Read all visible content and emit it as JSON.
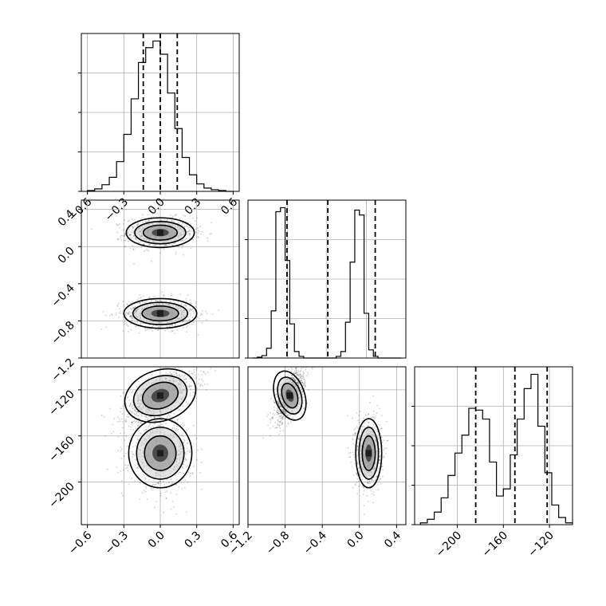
{
  "chart_data": [
    {
      "type": "histogram",
      "panel": "hist-param1",
      "xlim": [
        -0.65,
        0.65
      ],
      "xticks": [
        "−0.6",
        "−0.3",
        "0.0",
        "0.3",
        "0.6"
      ],
      "bins": [
        -0.6,
        -0.54,
        -0.48,
        -0.42,
        -0.36,
        -0.3,
        -0.24,
        -0.18,
        -0.12,
        -0.06,
        0.0,
        0.06,
        0.12,
        0.18,
        0.24,
        0.3,
        0.36,
        0.42,
        0.48,
        0.54,
        0.6
      ],
      "counts": [
        1,
        3,
        8,
        17,
        36,
        69,
        112,
        156,
        174,
        182,
        166,
        119,
        76,
        41,
        20,
        9,
        4,
        2,
        1,
        0
      ],
      "quantiles": [
        -0.14,
        0.0,
        0.14
      ],
      "grid": true
    },
    {
      "type": "scatter-density",
      "panel": "2d-param1-param2",
      "xlim": [
        -0.65,
        0.65
      ],
      "ylim": [
        -1.2,
        0.5
      ],
      "yticks": [
        "−1.2",
        "−0.8",
        "−0.4",
        "0.0",
        "0.4"
      ],
      "modes": [
        {
          "x": 0.0,
          "y": 0.15,
          "sx": 0.14,
          "sy": 0.08,
          "weight": 0.5
        },
        {
          "x": 0.0,
          "y": -0.72,
          "sx": 0.15,
          "sy": 0.08,
          "weight": 0.5
        }
      ],
      "grid": true
    },
    {
      "type": "histogram",
      "panel": "hist-param2",
      "xlim": [
        -1.2,
        0.5
      ],
      "bins": [
        -1.15,
        -1.1,
        -1.05,
        -1.0,
        -0.95,
        -0.9,
        -0.85,
        -0.8,
        -0.75,
        -0.7,
        -0.65,
        -0.6,
        -0.55,
        -0.5,
        -0.45,
        -0.4,
        -0.35,
        -0.3,
        -0.25,
        -0.2,
        -0.15,
        -0.1,
        -0.05,
        0.0,
        0.05,
        0.1,
        0.15,
        0.2,
        0.25,
        0.3,
        0.35,
        0.4,
        0.45
      ],
      "counts": [
        0,
        1,
        3,
        12,
        58,
        180,
        185,
        120,
        42,
        8,
        2,
        0,
        0,
        0,
        0,
        0,
        0,
        0,
        2,
        8,
        44,
        118,
        182,
        176,
        55,
        10,
        2,
        0,
        0,
        0,
        0,
        0
      ],
      "quantiles": [
        -0.78,
        -0.34,
        0.17
      ],
      "grid": true
    },
    {
      "type": "scatter-density",
      "panel": "2d-param1-param3",
      "xlim": [
        -0.65,
        0.65
      ],
      "ylim": [
        -237,
        -100
      ],
      "yticks": [
        "−200",
        "−160",
        "−120"
      ],
      "modes": [
        {
          "x": 0.0,
          "y": -125,
          "sx": 0.15,
          "sy": 11,
          "weight": 0.55,
          "rho": 0.6
        },
        {
          "x": 0.0,
          "y": -175,
          "sx": 0.13,
          "sy": 15,
          "weight": 0.45,
          "rho": 0.0
        }
      ],
      "grid": true
    },
    {
      "type": "scatter-density",
      "panel": "2d-param2-param3",
      "xlim": [
        -1.2,
        0.5
      ],
      "ylim": [
        -237,
        -100
      ],
      "xticks": [
        "−1.2",
        "−0.8",
        "−0.4",
        "0.0",
        "0.4"
      ],
      "modes": [
        {
          "x": -0.75,
          "y": -125,
          "sx": 0.08,
          "sy": 11,
          "weight": 0.55,
          "rho": 0.6
        },
        {
          "x": 0.1,
          "y": -175,
          "sx": 0.07,
          "sy": 15,
          "weight": 0.45,
          "rho": 0.0
        }
      ],
      "grid": true
    },
    {
      "type": "histogram",
      "panel": "hist-param3",
      "xlim": [
        -237,
        -100
      ],
      "xticks": [
        "−200",
        "−160",
        "−120"
      ],
      "bins": [
        -232,
        -226,
        -220,
        -214,
        -208,
        -202,
        -196,
        -190,
        -184,
        -178,
        -172,
        -166,
        -160,
        -154,
        -148,
        -142,
        -136,
        -130,
        -124,
        -118,
        -112,
        -106,
        -100
      ],
      "counts": [
        2,
        6,
        14,
        30,
        55,
        80,
        100,
        130,
        128,
        118,
        70,
        32,
        40,
        78,
        118,
        152,
        168,
        110,
        58,
        22,
        8,
        2
      ],
      "quantiles": [
        -184,
        -150,
        -122
      ],
      "grid": true
    }
  ]
}
